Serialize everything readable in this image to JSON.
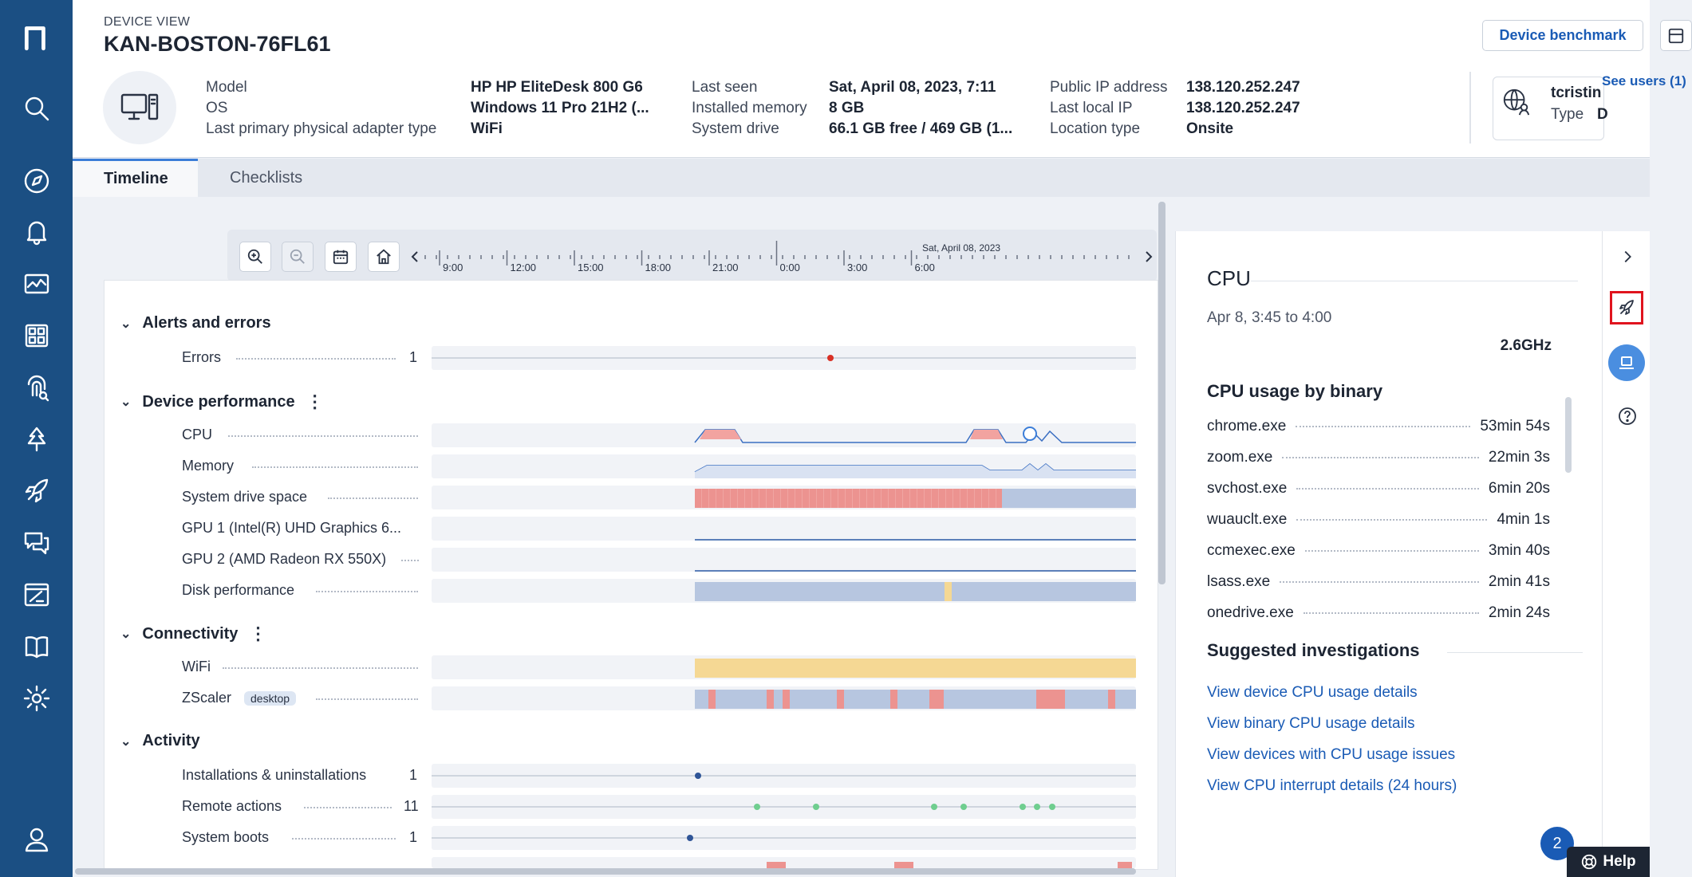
{
  "sidebar": {
    "logo": "n",
    "icons": [
      "search-icon",
      "compass-icon",
      "bell-icon",
      "dashboard-icon",
      "grid-icon",
      "fingerprint-icon",
      "tree-icon",
      "rocket-icon",
      "chat-icon",
      "report-icon",
      "book-icon",
      "gear-icon",
      "user-icon"
    ]
  },
  "header": {
    "breadcrumb": "DEVICE VIEW",
    "title": "KAN-BOSTON-76FL61",
    "benchmark_label": "Device benchmark",
    "col1": [
      {
        "k": "Model",
        "v": "HP HP EliteDesk 800 G6"
      },
      {
        "k": "OS",
        "v": "Windows 11 Pro 21H2 (..."
      },
      {
        "k": "Last primary physical adapter type",
        "v": "WiFi"
      }
    ],
    "col2": [
      {
        "k": "Last seen",
        "v": "Sat, April 08, 2023, 7:11"
      },
      {
        "k": "Installed memory",
        "v": "8 GB"
      },
      {
        "k": "System drive",
        "v": "66.1 GB free / 469 GB (1..."
      }
    ],
    "col3": [
      {
        "k": "Public IP address",
        "v": "138.120.252.247"
      },
      {
        "k": "Last local IP",
        "v": "138.120.252.247"
      },
      {
        "k": "Location type",
        "v": "Onsite"
      }
    ],
    "user": {
      "name": "tcristin",
      "type_label": "Type",
      "type_value": "D"
    },
    "see_users": "See users (1)"
  },
  "tabs": [
    {
      "label": "Timeline",
      "active": true
    },
    {
      "label": "Checklists",
      "active": false
    }
  ],
  "timeline_axis": {
    "date_label": "Sat, April 08, 2023",
    "ticks": [
      "9:00",
      "12:00",
      "15:00",
      "18:00",
      "21:00",
      "0:00",
      "3:00",
      "6:00"
    ]
  },
  "sections": [
    {
      "title": "Alerts and errors",
      "rows": [
        {
          "label": "Errors",
          "count": "1"
        }
      ]
    },
    {
      "title": "Device performance",
      "rows": [
        {
          "label": "CPU"
        },
        {
          "label": "Memory"
        },
        {
          "label": "System drive space"
        },
        {
          "label": "GPU 1 (Intel(R) UHD Graphics 6..."
        },
        {
          "label": "GPU 2 (AMD Radeon RX 550X)"
        },
        {
          "label": "Disk performance"
        }
      ]
    },
    {
      "title": "Connectivity",
      "rows": [
        {
          "label": "WiFi"
        },
        {
          "label": "ZScaler",
          "tag": "desktop"
        }
      ]
    },
    {
      "title": "Activity",
      "rows": [
        {
          "label": "Installations & uninstallations",
          "count": "1"
        },
        {
          "label": "Remote actions",
          "count": "11"
        },
        {
          "label": "System boots",
          "count": "1"
        }
      ]
    }
  ],
  "right_panel": {
    "title": "CPU",
    "range": "Apr 8, 3:45 to 4:00",
    "freq": "2.6GHz",
    "binary_heading": "CPU usage by binary",
    "binaries": [
      {
        "name": "chrome.exe",
        "time": "53min 54s"
      },
      {
        "name": "zoom.exe",
        "time": "22min 3s"
      },
      {
        "name": "svchost.exe",
        "time": "6min 20s"
      },
      {
        "name": "wuauclt.exe",
        "time": "4min 1s"
      },
      {
        "name": "ccmexec.exe",
        "time": "3min 40s"
      },
      {
        "name": "lsass.exe",
        "time": "2min 41s"
      },
      {
        "name": "onedrive.exe",
        "time": "2min 24s"
      }
    ],
    "suggested_heading": "Suggested investigations",
    "links": [
      "View device CPU usage details",
      "View binary CPU usage details",
      "View devices with CPU usage issues",
      "View CPU interrupt details (24 hours)"
    ]
  },
  "notifications_count": "2",
  "help_label": "Help",
  "colors": {
    "sidebar": "#1b4f83",
    "accent": "#1a5bb5",
    "alert": "#e58a86",
    "ok": "#b7c6e0",
    "wifi": "#f5d894",
    "error_dot": "#d93025"
  }
}
